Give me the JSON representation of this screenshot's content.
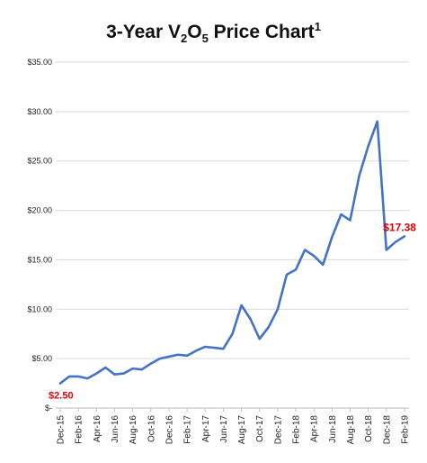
{
  "chart_data": {
    "type": "line",
    "title_parts": {
      "pre": "3-Year V",
      "sub1": "2",
      "mid": "O",
      "sub2": "5",
      "post": " Price Chart",
      "sup": "1"
    },
    "y_tick_labels": [
      "$-",
      "$5.00",
      "$10.00",
      "$15.00",
      "$20.00",
      "$25.00",
      "$30.00",
      "$35.00"
    ],
    "y_tick_values": [
      0,
      5,
      10,
      15,
      20,
      25,
      30,
      35
    ],
    "ylim": [
      0,
      35
    ],
    "x_tick_labels": [
      "Dec-15",
      "Feb-16",
      "Apr-16",
      "Jun-16",
      "Aug-16",
      "Oct-16",
      "Dec-16",
      "Feb-17",
      "Apr-17",
      "Jun-17",
      "Aug-17",
      "Oct-17",
      "Dec-17",
      "Feb-18",
      "Apr-18",
      "Jun-18",
      "Aug-18",
      "Oct-18",
      "Dec-18",
      "Feb-19"
    ],
    "x": [
      "Dec-15",
      "Jan-16",
      "Feb-16",
      "Mar-16",
      "Apr-16",
      "May-16",
      "Jun-16",
      "Jul-16",
      "Aug-16",
      "Sep-16",
      "Oct-16",
      "Nov-16",
      "Dec-16",
      "Jan-17",
      "Feb-17",
      "Mar-17",
      "Apr-17",
      "May-17",
      "Jun-17",
      "Jul-17",
      "Aug-17",
      "Sep-17",
      "Oct-17",
      "Nov-17",
      "Dec-17",
      "Jan-18",
      "Feb-18",
      "Mar-18",
      "Apr-18",
      "May-18",
      "Jun-18",
      "Jul-18",
      "Aug-18",
      "Sep-18",
      "Oct-18",
      "Nov-18",
      "Dec-18",
      "Jan-19",
      "Feb-19"
    ],
    "series": [
      {
        "values": [
          2.5,
          3.2,
          3.2,
          3.0,
          3.5,
          4.1,
          3.4,
          3.5,
          4.0,
          3.9,
          4.5,
          5.0,
          5.2,
          5.4,
          5.3,
          5.8,
          6.2,
          6.1,
          6.0,
          7.5,
          10.4,
          9.0,
          7.0,
          8.2,
          10.0,
          13.5,
          14.0,
          16.0,
          15.4,
          14.5,
          17.3,
          19.6,
          19.0,
          23.5,
          26.5,
          29.0,
          16.0,
          16.8,
          17.38
        ],
        "color": "#4472C4"
      }
    ],
    "annotations": [
      {
        "label": "$2.50",
        "x": "Dec-15",
        "y": 2.5
      },
      {
        "label": "$17.38",
        "x": "Feb-19",
        "y": 17.38
      }
    ],
    "label_color": "#e00000",
    "grid": true
  }
}
